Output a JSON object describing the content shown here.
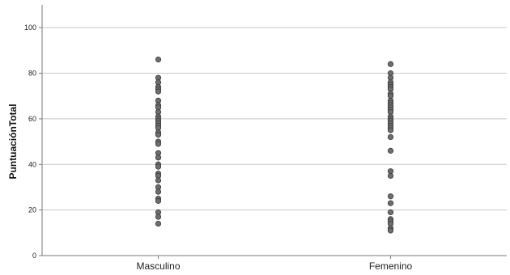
{
  "chart_data": {
    "type": "scatter",
    "ylabel": "PuntuaciónTotal",
    "xlabel": "",
    "categories": [
      "Masculino",
      "Femenino"
    ],
    "ylim": [
      0,
      110
    ],
    "yticks": [
      0,
      20,
      40,
      60,
      80,
      100
    ],
    "grid": true,
    "series": [
      {
        "values": [
          86,
          78,
          76,
          74,
          73,
          72,
          68,
          66,
          65,
          63,
          61,
          60,
          59,
          58,
          57,
          56,
          54,
          53,
          50,
          49,
          45,
          43,
          40,
          39,
          36,
          35,
          33,
          30,
          28,
          25,
          24,
          19,
          17,
          14
        ]
      },
      {
        "values": [
          84,
          80,
          78,
          76,
          75,
          74,
          73,
          71,
          70,
          68,
          67,
          66,
          65,
          64,
          63,
          61,
          60,
          59,
          58,
          57,
          56,
          55,
          52,
          46,
          37,
          35,
          26,
          23,
          19,
          16,
          15,
          14,
          12,
          11
        ]
      }
    ],
    "colors": {
      "marker_fill": "#6e6e6e",
      "marker_stroke": "#3a3a3a",
      "grid": "#c8c8c8",
      "axis": "#7a7a7a"
    }
  }
}
